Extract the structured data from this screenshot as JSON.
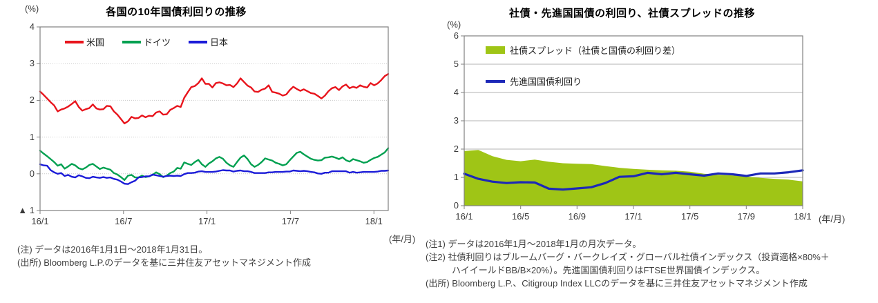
{
  "chart_data": [
    {
      "type": "line",
      "title": "各国の10年国債利回りの推移",
      "y_unit": "(%)",
      "x_unit": "(年/月)",
      "ylim": [
        -1,
        4
      ],
      "grid": "dotted horizontal gridlines",
      "legend_position": "top inside plot, horizontal",
      "y_tick_values": [
        4,
        3,
        2,
        1,
        0,
        -1
      ],
      "y_tick_labels": [
        "4",
        "3",
        "2",
        "1",
        "0",
        "▲ 1"
      ],
      "x_tick_labels": [
        "16/1",
        "16/7",
        "17/1",
        "17/7",
        "18/1"
      ],
      "x_tick_months": [
        0,
        6,
        12,
        18,
        24
      ],
      "x_span_months": 25.03,
      "sampling": "approx. weekly values, 2016/1/1 - 2018/1/31",
      "series": [
        {
          "name": "米国",
          "color": "#e8141c",
          "values": [
            2.24,
            2.15,
            2.05,
            1.95,
            1.86,
            1.7,
            1.75,
            1.78,
            1.83,
            1.9,
            1.98,
            1.82,
            1.72,
            1.76,
            1.79,
            1.89,
            1.78,
            1.75,
            1.76,
            1.85,
            1.84,
            1.7,
            1.61,
            1.49,
            1.37,
            1.43,
            1.55,
            1.51,
            1.52,
            1.59,
            1.54,
            1.58,
            1.57,
            1.67,
            1.7,
            1.61,
            1.62,
            1.74,
            1.79,
            1.85,
            1.82,
            2.07,
            2.22,
            2.36,
            2.39,
            2.47,
            2.6,
            2.45,
            2.45,
            2.35,
            2.47,
            2.49,
            2.46,
            2.41,
            2.42,
            2.36,
            2.46,
            2.6,
            2.5,
            2.4,
            2.35,
            2.24,
            2.23,
            2.29,
            2.32,
            2.41,
            2.23,
            2.21,
            2.18,
            2.13,
            2.16,
            2.28,
            2.37,
            2.31,
            2.26,
            2.3,
            2.25,
            2.2,
            2.18,
            2.12,
            2.05,
            2.13,
            2.25,
            2.33,
            2.36,
            2.28,
            2.38,
            2.43,
            2.33,
            2.37,
            2.34,
            2.41,
            2.37,
            2.35,
            2.47,
            2.41,
            2.46,
            2.55,
            2.66,
            2.72
          ]
        },
        {
          "name": "ドイツ",
          "color": "#00a050",
          "values": [
            0.63,
            0.55,
            0.48,
            0.4,
            0.32,
            0.22,
            0.26,
            0.14,
            0.2,
            0.27,
            0.23,
            0.15,
            0.12,
            0.17,
            0.24,
            0.27,
            0.2,
            0.13,
            0.17,
            0.14,
            0.11,
            0.02,
            -0.02,
            -0.09,
            -0.17,
            -0.05,
            -0.03,
            -0.1,
            -0.1,
            -0.05,
            -0.09,
            -0.07,
            -0.03,
            0.04,
            -0.01,
            -0.09,
            -0.05,
            0.02,
            0.06,
            0.16,
            0.14,
            0.31,
            0.27,
            0.24,
            0.32,
            0.38,
            0.26,
            0.19,
            0.28,
            0.34,
            0.42,
            0.46,
            0.41,
            0.3,
            0.23,
            0.19,
            0.32,
            0.44,
            0.5,
            0.4,
            0.26,
            0.19,
            0.24,
            0.32,
            0.42,
            0.39,
            0.36,
            0.3,
            0.27,
            0.23,
            0.26,
            0.37,
            0.47,
            0.57,
            0.6,
            0.53,
            0.47,
            0.41,
            0.38,
            0.36,
            0.37,
            0.44,
            0.45,
            0.47,
            0.44,
            0.4,
            0.45,
            0.37,
            0.33,
            0.4,
            0.37,
            0.34,
            0.3,
            0.32,
            0.38,
            0.43,
            0.46,
            0.52,
            0.58,
            0.7
          ]
        },
        {
          "name": "日本",
          "color": "#1b1bd8",
          "values": [
            0.26,
            0.23,
            0.22,
            0.1,
            0.04,
            0.0,
            0.02,
            -0.06,
            -0.03,
            -0.08,
            -0.1,
            -0.04,
            -0.07,
            -0.11,
            -0.12,
            -0.08,
            -0.1,
            -0.11,
            -0.09,
            -0.11,
            -0.1,
            -0.14,
            -0.16,
            -0.21,
            -0.27,
            -0.28,
            -0.23,
            -0.19,
            -0.1,
            -0.09,
            -0.07,
            -0.07,
            -0.02,
            -0.04,
            -0.06,
            -0.08,
            -0.06,
            -0.05,
            -0.06,
            -0.05,
            -0.06,
            -0.01,
            0.02,
            0.02,
            0.03,
            0.06,
            0.07,
            0.05,
            0.05,
            0.05,
            0.06,
            0.08,
            0.1,
            0.09,
            0.09,
            0.06,
            0.08,
            0.09,
            0.07,
            0.07,
            0.05,
            0.02,
            0.02,
            0.02,
            0.02,
            0.04,
            0.04,
            0.05,
            0.05,
            0.05,
            0.06,
            0.06,
            0.09,
            0.08,
            0.07,
            0.08,
            0.07,
            0.05,
            0.04,
            0.01,
            0.0,
            0.03,
            0.03,
            0.07,
            0.07,
            0.07,
            0.07,
            0.07,
            0.03,
            0.05,
            0.03,
            0.04,
            0.05,
            0.05,
            0.05,
            0.05,
            0.06,
            0.08,
            0.08,
            0.09
          ]
        }
      ],
      "notes": [
        "(注) データは2016年1月1日～2018年1月31日。",
        "(出所) Bloomberg L.P.のデータを基に三井住友アセットマネジメント作成"
      ]
    },
    {
      "type": "area+line",
      "title": "社債・先進国国債の利回り、社債スプレッドの推移",
      "y_unit": "(%)",
      "x_unit": "(年/月)",
      "ylim": [
        0,
        6
      ],
      "grid": "solid horizontal gridlines",
      "legend_position": "top-left inside plot, stacked",
      "y_tick_values": [
        6,
        5,
        4,
        3,
        2,
        1,
        0
      ],
      "y_tick_labels": [
        "6",
        "5",
        "4",
        "3",
        "2",
        "1",
        "0"
      ],
      "x_tick_labels": [
        "16/1",
        "16/5",
        "16/9",
        "17/1",
        "17/5",
        "17/9",
        "18/1"
      ],
      "x_tick_months": [
        0,
        4,
        8,
        12,
        16,
        20,
        24
      ],
      "x_span_months": 24,
      "categories": [
        "16/1",
        "16/2",
        "16/3",
        "16/4",
        "16/5",
        "16/6",
        "16/7",
        "16/8",
        "16/9",
        "16/10",
        "16/11",
        "16/12",
        "17/1",
        "17/2",
        "17/3",
        "17/4",
        "17/5",
        "17/6",
        "17/7",
        "17/8",
        "17/9",
        "17/10",
        "17/11",
        "17/12",
        "18/1"
      ],
      "series": [
        {
          "name": "社債スプレッド（社債と国債の利回り差）",
          "type": "area",
          "color": "#9fc516",
          "values": [
            1.93,
            1.97,
            1.75,
            1.62,
            1.57,
            1.63,
            1.55,
            1.5,
            1.48,
            1.47,
            1.4,
            1.34,
            1.3,
            1.27,
            1.25,
            1.24,
            1.2,
            1.13,
            1.09,
            1.07,
            1.03,
            0.98,
            0.95,
            0.92,
            0.86
          ]
        },
        {
          "name": "先進国国債利回り",
          "type": "line",
          "color": "#1c28b8",
          "values": [
            1.13,
            0.95,
            0.85,
            0.8,
            0.83,
            0.82,
            0.6,
            0.57,
            0.61,
            0.65,
            0.8,
            1.02,
            1.04,
            1.16,
            1.11,
            1.16,
            1.11,
            1.06,
            1.14,
            1.11,
            1.05,
            1.14,
            1.14,
            1.18,
            1.25
          ]
        }
      ],
      "notes": [
        "(注1) データは2016年1月～2018年1月の月次データ。",
        "(注2) 社債利回りはブルームバーグ・バークレイズ・グローバル社債インデックス（投資適格×80%＋",
        "ハイイールドBB/B×20%）。先進国国債利回りはFTSE世界国債インデックス。",
        "(出所) Bloomberg L.P.、Citigroup Index LLCのデータを基に三井住友アセットマネジメント作成"
      ]
    }
  ]
}
